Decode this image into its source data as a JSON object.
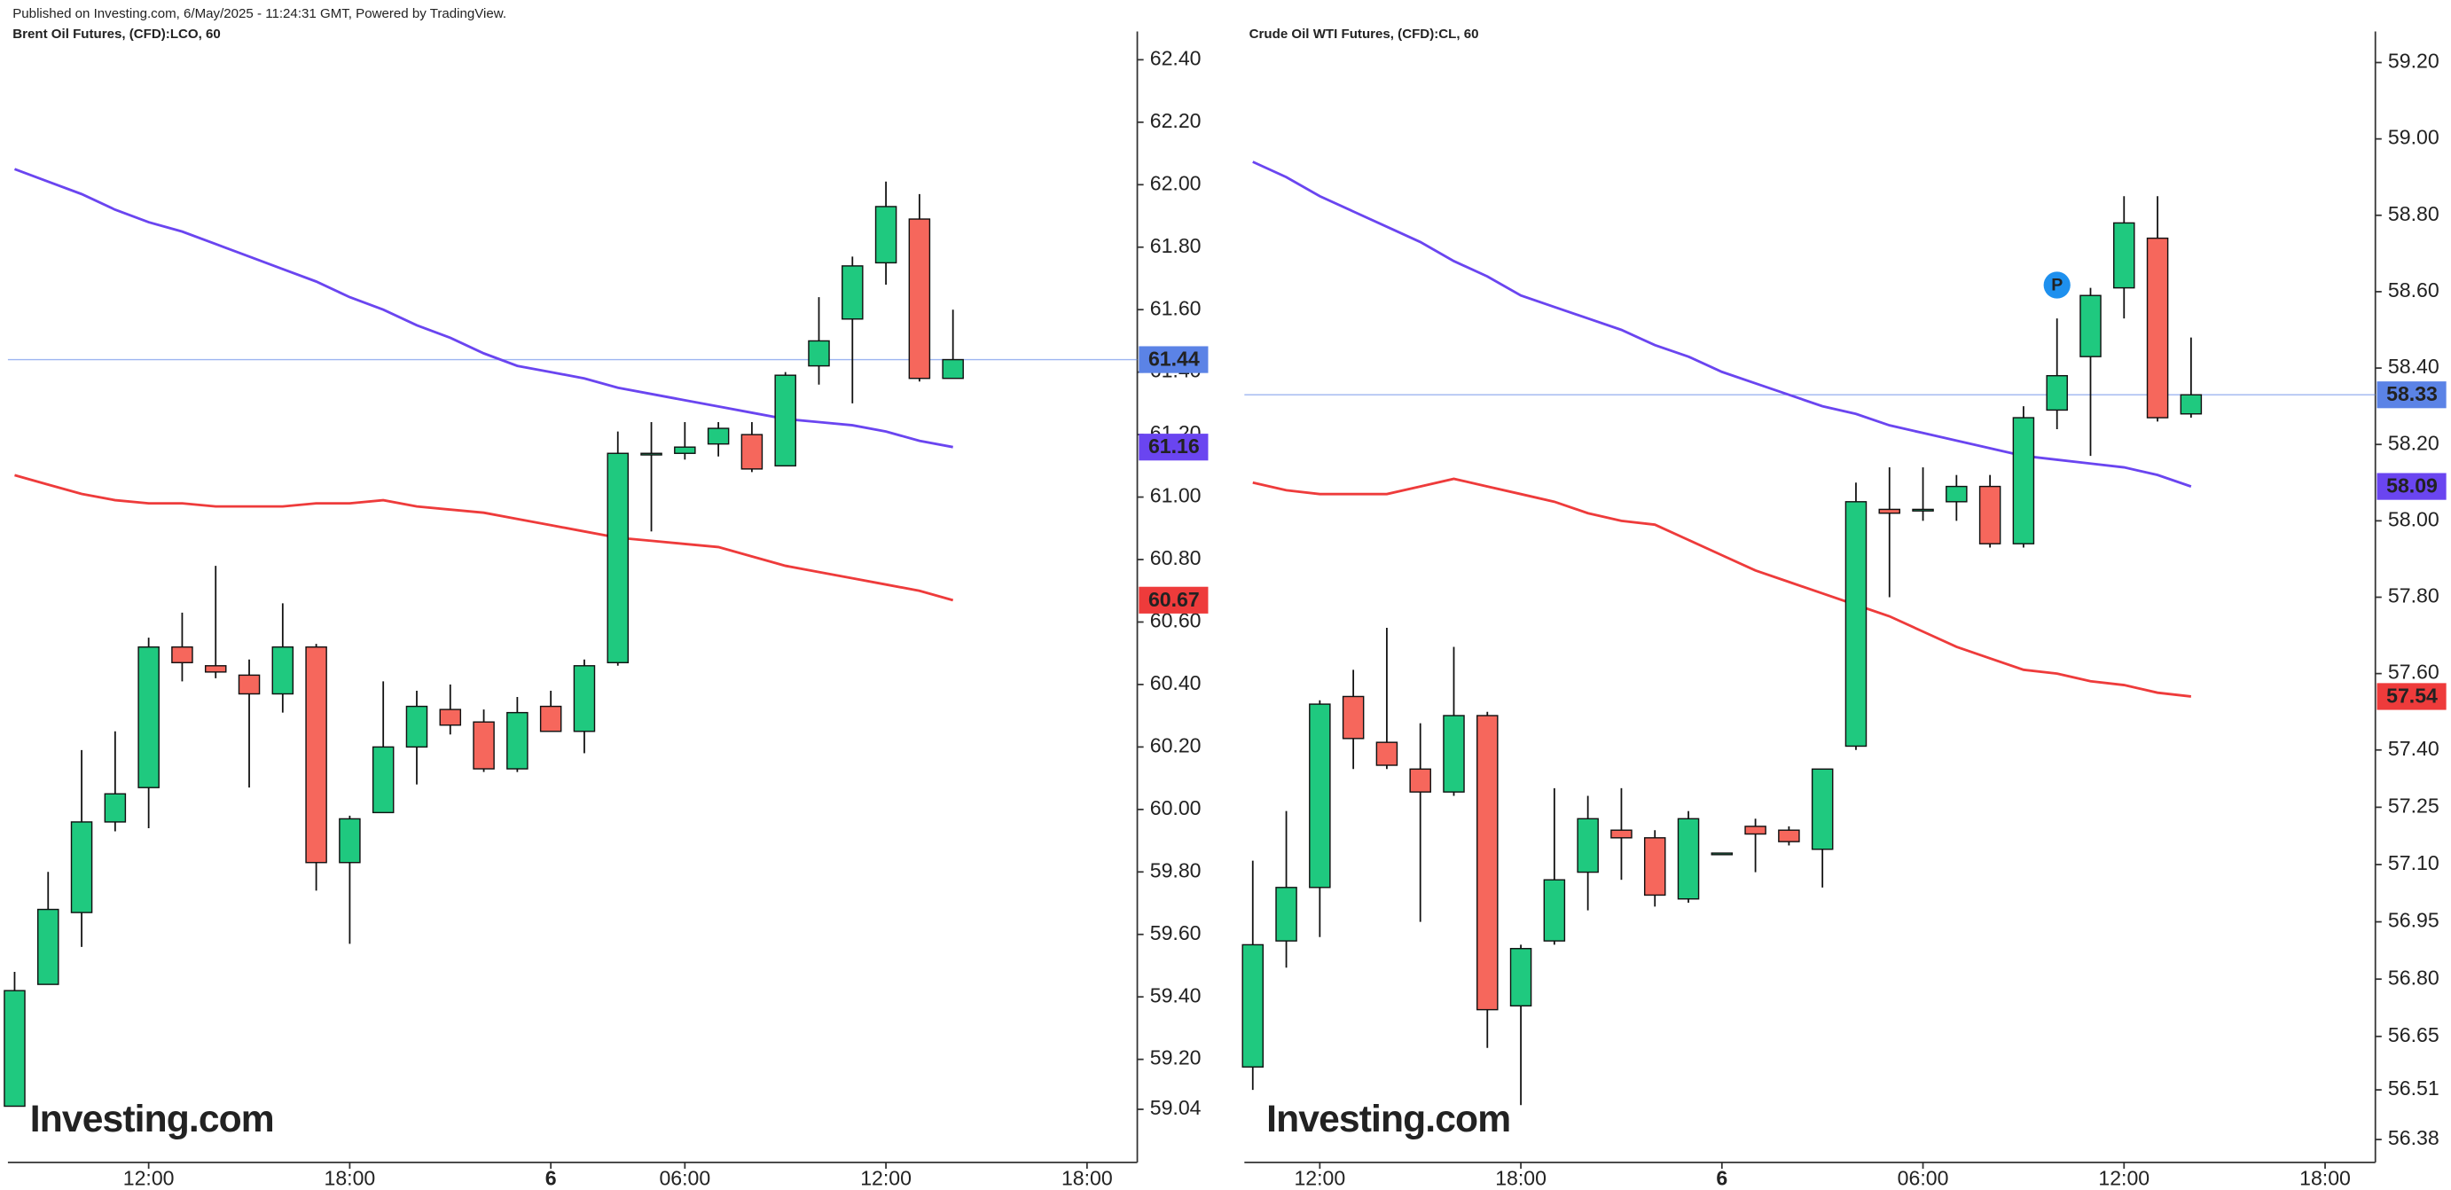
{
  "header": "Published on Investing.com, 6/May/2025 - 11:24:31 GMT, Powered by TradingView.",
  "chart_data": [
    {
      "type": "candlestick",
      "title": "Brent Oil Futures, (CFD):LCO, 60",
      "watermark": "Investing.com",
      "up_color": "#1fc97f",
      "down_color": "#f6675c",
      "price_line_color": "#5b83e6",
      "open": [
        59.05,
        59.44,
        59.67,
        59.96,
        60.07,
        60.52,
        60.46,
        60.43,
        60.37,
        60.52,
        59.83,
        59.99,
        60.2,
        60.32,
        60.28,
        60.13,
        60.33,
        60.25,
        60.47,
        61.14,
        61.14,
        61.17,
        61.2,
        61.1,
        61.42,
        61.57,
        61.75,
        61.89,
        61.38
      ],
      "high": [
        59.48,
        59.8,
        60.19,
        60.25,
        60.55,
        60.63,
        60.78,
        60.48,
        60.66,
        60.53,
        59.98,
        60.41,
        60.38,
        60.4,
        60.32,
        60.36,
        60.38,
        60.48,
        61.21,
        61.24,
        61.24,
        61.24,
        61.24,
        61.4,
        61.64,
        61.77,
        62.01,
        61.97,
        61.6
      ],
      "low": [
        59.05,
        59.44,
        59.56,
        59.93,
        59.94,
        60.41,
        60.42,
        60.07,
        60.31,
        59.74,
        59.57,
        59.99,
        60.08,
        60.24,
        60.12,
        60.12,
        60.25,
        60.18,
        60.46,
        60.89,
        61.12,
        61.13,
        61.08,
        61.1,
        61.36,
        61.3,
        61.68,
        61.37,
        61.38
      ],
      "close": [
        59.42,
        59.68,
        59.96,
        60.05,
        60.52,
        60.47,
        60.44,
        60.37,
        60.52,
        59.83,
        59.97,
        60.2,
        60.33,
        60.27,
        60.13,
        60.31,
        60.25,
        60.46,
        61.14,
        61.14,
        61.16,
        61.22,
        61.09,
        61.39,
        61.5,
        61.74,
        61.93,
        61.38,
        61.44
      ],
      "series": [
        {
          "color": "#6a45f0",
          "values": [
            62.05,
            62.01,
            61.97,
            61.92,
            61.88,
            61.85,
            61.81,
            61.77,
            61.73,
            61.69,
            61.64,
            61.6,
            61.55,
            61.51,
            61.46,
            61.42,
            61.4,
            61.38,
            61.35,
            61.33,
            61.31,
            61.29,
            61.27,
            61.25,
            61.24,
            61.23,
            61.21,
            61.18,
            61.16
          ]
        },
        {
          "color": "#ee3b3b",
          "values": [
            61.07,
            61.04,
            61.01,
            60.99,
            60.98,
            60.98,
            60.97,
            60.97,
            60.97,
            60.98,
            60.98,
            60.99,
            60.97,
            60.96,
            60.95,
            60.93,
            60.91,
            60.89,
            60.87,
            60.86,
            60.85,
            60.84,
            60.81,
            60.78,
            60.76,
            60.74,
            60.72,
            60.7,
            60.67
          ]
        }
      ],
      "ylim": [
        58.87,
        62.44
      ],
      "yticks": [
        {
          "value": 62.4,
          "label": "62.40"
        },
        {
          "value": 62.2,
          "label": "62.20"
        },
        {
          "value": 62.0,
          "label": "62.00"
        },
        {
          "value": 61.8,
          "label": "61.80"
        },
        {
          "value": 61.6,
          "label": "61.60"
        },
        {
          "value": 61.4,
          "label": "61.40"
        },
        {
          "value": 61.2,
          "label": "61.20"
        },
        {
          "value": 61.0,
          "label": "61.00"
        },
        {
          "value": 60.8,
          "label": "60.80"
        },
        {
          "value": 60.6,
          "label": "60.60"
        },
        {
          "value": 60.4,
          "label": "60.40"
        },
        {
          "value": 60.2,
          "label": "60.20"
        },
        {
          "value": 60.0,
          "label": "60.00"
        },
        {
          "value": 59.8,
          "label": "59.80"
        },
        {
          "value": 59.6,
          "label": "59.60"
        },
        {
          "value": 59.4,
          "label": "59.40"
        },
        {
          "value": 59.2,
          "label": "59.20"
        },
        {
          "value": 59.04,
          "label": "59.04"
        }
      ],
      "xlim": [
        -0.2,
        33.5
      ],
      "xticks": [
        {
          "value": 4,
          "label": "12:00"
        },
        {
          "value": 10,
          "label": "18:00"
        },
        {
          "value": 16,
          "label": "6"
        },
        {
          "value": 20,
          "label": "06:00"
        },
        {
          "value": 26,
          "label": "12:00"
        },
        {
          "value": 32,
          "label": "18:00"
        }
      ]
    },
    {
      "type": "candlestick",
      "title": "Crude Oil WTI Futures, (CFD):CL, 60",
      "watermark": "Investing.com",
      "annotation": "P",
      "up_color": "#1fc97f",
      "down_color": "#f6675c",
      "price_line_color": "#5b83e6",
      "open": [
        56.57,
        56.9,
        57.04,
        57.54,
        57.42,
        57.35,
        57.29,
        57.49,
        56.73,
        56.9,
        57.08,
        57.19,
        57.17,
        57.01,
        57.13,
        57.2,
        57.19,
        57.14,
        57.41,
        58.03,
        58.03,
        58.05,
        58.09,
        57.94,
        58.29,
        58.43,
        58.61,
        58.74,
        58.28
      ],
      "high": [
        57.11,
        57.24,
        57.53,
        57.61,
        57.72,
        57.47,
        57.67,
        57.5,
        56.89,
        57.3,
        57.28,
        57.3,
        57.19,
        57.24,
        57.13,
        57.22,
        57.2,
        57.35,
        58.1,
        58.14,
        58.14,
        58.12,
        58.12,
        58.3,
        58.53,
        58.61,
        58.85,
        58.85,
        58.48
      ],
      "low": [
        56.51,
        56.83,
        56.91,
        57.35,
        57.35,
        56.95,
        57.28,
        56.62,
        56.47,
        56.89,
        56.98,
        57.06,
        56.99,
        57.0,
        57.13,
        57.08,
        57.15,
        57.04,
        57.4,
        57.8,
        58.0,
        58.0,
        57.93,
        57.93,
        58.24,
        58.17,
        58.53,
        58.26,
        58.27
      ],
      "close": [
        56.89,
        57.04,
        57.52,
        57.43,
        57.36,
        57.29,
        57.49,
        56.72,
        56.88,
        57.06,
        57.22,
        57.17,
        57.02,
        57.22,
        57.13,
        57.18,
        57.16,
        57.35,
        58.05,
        58.02,
        58.03,
        58.09,
        57.94,
        58.27,
        58.38,
        58.59,
        58.78,
        58.27,
        58.33
      ],
      "series": [
        {
          "color": "#6a45f0",
          "values": [
            58.94,
            58.9,
            58.85,
            58.81,
            58.77,
            58.73,
            58.68,
            58.64,
            58.59,
            58.56,
            58.53,
            58.5,
            58.46,
            58.43,
            58.39,
            58.36,
            58.33,
            58.3,
            58.28,
            58.25,
            58.23,
            58.21,
            58.19,
            58.17,
            58.16,
            58.15,
            58.14,
            58.12,
            58.09
          ]
        },
        {
          "color": "#ee3b3b",
          "values": [
            58.1,
            58.08,
            58.07,
            58.07,
            58.07,
            58.09,
            58.11,
            58.09,
            58.07,
            58.05,
            58.02,
            58.0,
            57.99,
            57.95,
            57.91,
            57.87,
            57.84,
            57.81,
            57.78,
            57.75,
            57.71,
            57.67,
            57.64,
            57.61,
            57.6,
            57.58,
            57.57,
            57.55,
            57.54
          ]
        }
      ],
      "ylim": [
        56.32,
        59.24
      ],
      "yticks": [
        {
          "value": 59.2,
          "label": "59.20"
        },
        {
          "value": 59.0,
          "label": "59.00"
        },
        {
          "value": 58.8,
          "label": "58.80"
        },
        {
          "value": 58.6,
          "label": "58.60"
        },
        {
          "value": 58.4,
          "label": "58.40"
        },
        {
          "value": 58.2,
          "label": "58.20"
        },
        {
          "value": 58.0,
          "label": "58.00"
        },
        {
          "value": 57.8,
          "label": "57.80"
        },
        {
          "value": 57.6,
          "label": "57.60"
        },
        {
          "value": 57.4,
          "label": "57.40"
        },
        {
          "value": 57.25,
          "label": "57.25"
        },
        {
          "value": 57.1,
          "label": "57.10"
        },
        {
          "value": 56.95,
          "label": "56.95"
        },
        {
          "value": 56.8,
          "label": "56.80"
        },
        {
          "value": 56.65,
          "label": "56.65"
        },
        {
          "value": 56.51,
          "label": "56.51"
        },
        {
          "value": 56.38,
          "label": "56.38"
        }
      ],
      "xlim": [
        -0.25,
        33.5
      ],
      "xticks": [
        {
          "value": 2,
          "label": "12:00"
        },
        {
          "value": 8,
          "label": "18:00"
        },
        {
          "value": 14,
          "label": "6"
        },
        {
          "value": 20,
          "label": "06:00"
        },
        {
          "value": 26,
          "label": "12:00"
        },
        {
          "value": 32,
          "label": "18:00"
        }
      ]
    }
  ]
}
